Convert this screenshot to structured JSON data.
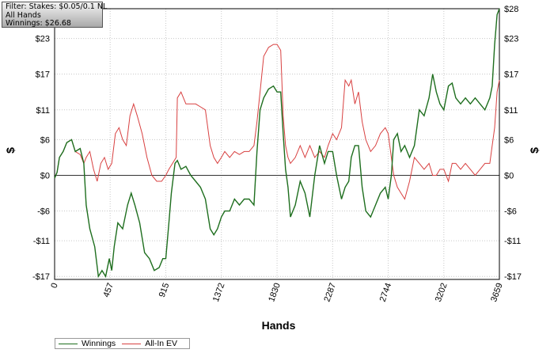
{
  "info": {
    "filter": "Filter: Stakes: $0.05/0.1 NL",
    "hands": "All Hands",
    "winnings": "Winnings: $26.68"
  },
  "chart_data": {
    "type": "line",
    "xlabel": "Hands",
    "ylabel_left": "$",
    "ylabel_right": "$",
    "xlim": [
      0,
      3659
    ],
    "ylim": [
      -17.5,
      28
    ],
    "x_ticks": [
      {
        "value": 0,
        "label": "0"
      },
      {
        "value": 457,
        "label": "457"
      },
      {
        "value": 915,
        "label": "915"
      },
      {
        "value": 1372,
        "label": "1372"
      },
      {
        "value": 1830,
        "label": "1830"
      },
      {
        "value": 2287,
        "label": "2287"
      },
      {
        "value": 2744,
        "label": "2744"
      },
      {
        "value": 3202,
        "label": "3202"
      },
      {
        "value": 3659,
        "label": "3659"
      }
    ],
    "y_ticks": [
      {
        "value": 28,
        "label": "$28"
      },
      {
        "value": 23,
        "label": "$23"
      },
      {
        "value": 17,
        "label": "$17"
      },
      {
        "value": 11,
        "label": "$11"
      },
      {
        "value": 6,
        "label": "$6"
      },
      {
        "value": 0,
        "label": "$0"
      },
      {
        "value": -6,
        "label": "-$6"
      },
      {
        "value": -11,
        "label": "-$11"
      },
      {
        "value": -17,
        "label": "-$17"
      }
    ],
    "grid": true,
    "legend_position": "bottom-left",
    "series": [
      {
        "name": "Winnings",
        "color": "#1e6e1e",
        "points": [
          [
            0,
            -0.5
          ],
          [
            20,
            0.5
          ],
          [
            40,
            3
          ],
          [
            70,
            4
          ],
          [
            100,
            5.5
          ],
          [
            140,
            6
          ],
          [
            170,
            4
          ],
          [
            210,
            4.5
          ],
          [
            240,
            2
          ],
          [
            260,
            -5
          ],
          [
            290,
            -9
          ],
          [
            330,
            -12
          ],
          [
            360,
            -17
          ],
          [
            390,
            -16
          ],
          [
            420,
            -17
          ],
          [
            450,
            -14
          ],
          [
            470,
            -16
          ],
          [
            490,
            -12
          ],
          [
            520,
            -8
          ],
          [
            560,
            -9
          ],
          [
            600,
            -5
          ],
          [
            630,
            -3
          ],
          [
            660,
            -5
          ],
          [
            700,
            -8
          ],
          [
            740,
            -13
          ],
          [
            780,
            -14
          ],
          [
            820,
            -16
          ],
          [
            860,
            -15.5
          ],
          [
            890,
            -14
          ],
          [
            915,
            -14
          ],
          [
            940,
            -8
          ],
          [
            960,
            -3
          ],
          [
            990,
            2
          ],
          [
            1010,
            2.5
          ],
          [
            1040,
            1
          ],
          [
            1080,
            1.5
          ],
          [
            1120,
            0
          ],
          [
            1160,
            -1
          ],
          [
            1200,
            -2
          ],
          [
            1240,
            -4
          ],
          [
            1280,
            -9
          ],
          [
            1310,
            -10
          ],
          [
            1340,
            -9
          ],
          [
            1372,
            -7
          ],
          [
            1400,
            -6
          ],
          [
            1440,
            -6
          ],
          [
            1480,
            -4
          ],
          [
            1520,
            -5
          ],
          [
            1560,
            -4
          ],
          [
            1600,
            -4
          ],
          [
            1640,
            -5
          ],
          [
            1665,
            4
          ],
          [
            1690,
            11
          ],
          [
            1720,
            13
          ],
          [
            1760,
            14.5
          ],
          [
            1800,
            15
          ],
          [
            1830,
            14
          ],
          [
            1860,
            14
          ],
          [
            1880,
            7
          ],
          [
            1900,
            1
          ],
          [
            1920,
            -2
          ],
          [
            1940,
            -7
          ],
          [
            1980,
            -5
          ],
          [
            2020,
            -1
          ],
          [
            2060,
            -3
          ],
          [
            2100,
            -7
          ],
          [
            2140,
            0
          ],
          [
            2180,
            5
          ],
          [
            2220,
            2
          ],
          [
            2250,
            4
          ],
          [
            2287,
            4
          ],
          [
            2320,
            0
          ],
          [
            2360,
            -4
          ],
          [
            2390,
            -2
          ],
          [
            2420,
            -1
          ],
          [
            2440,
            3
          ],
          [
            2470,
            5
          ],
          [
            2500,
            5
          ],
          [
            2530,
            -2
          ],
          [
            2560,
            -6
          ],
          [
            2600,
            -7
          ],
          [
            2640,
            -5
          ],
          [
            2680,
            -3
          ],
          [
            2720,
            -2
          ],
          [
            2744,
            -4
          ],
          [
            2770,
            0
          ],
          [
            2790,
            6
          ],
          [
            2820,
            7
          ],
          [
            2850,
            4
          ],
          [
            2880,
            5
          ],
          [
            2920,
            3
          ],
          [
            2960,
            5
          ],
          [
            3000,
            11
          ],
          [
            3040,
            10
          ],
          [
            3080,
            13
          ],
          [
            3110,
            17
          ],
          [
            3140,
            14
          ],
          [
            3170,
            12
          ],
          [
            3202,
            11
          ],
          [
            3240,
            15
          ],
          [
            3270,
            15.5
          ],
          [
            3300,
            13
          ],
          [
            3340,
            12
          ],
          [
            3380,
            13
          ],
          [
            3420,
            12
          ],
          [
            3460,
            13
          ],
          [
            3500,
            12
          ],
          [
            3540,
            11
          ],
          [
            3580,
            13
          ],
          [
            3600,
            15
          ],
          [
            3620,
            22
          ],
          [
            3640,
            27
          ],
          [
            3659,
            28
          ]
        ]
      },
      {
        "name": "All-In EV",
        "color": "#d84040",
        "points": [
          [
            0,
            -0.5
          ],
          [
            20,
            0.5
          ],
          [
            40,
            3
          ],
          [
            70,
            4
          ],
          [
            100,
            5.5
          ],
          [
            140,
            6
          ],
          [
            170,
            4
          ],
          [
            210,
            3.5
          ],
          [
            240,
            2
          ],
          [
            260,
            3
          ],
          [
            290,
            4
          ],
          [
            320,
            1
          ],
          [
            350,
            -1
          ],
          [
            380,
            2
          ],
          [
            410,
            3
          ],
          [
            440,
            1
          ],
          [
            470,
            2
          ],
          [
            500,
            7
          ],
          [
            530,
            8
          ],
          [
            560,
            6
          ],
          [
            590,
            5
          ],
          [
            620,
            10
          ],
          [
            650,
            12
          ],
          [
            680,
            10
          ],
          [
            720,
            7
          ],
          [
            760,
            3
          ],
          [
            800,
            0
          ],
          [
            840,
            -1
          ],
          [
            880,
            -1
          ],
          [
            915,
            0
          ],
          [
            940,
            1
          ],
          [
            970,
            2
          ],
          [
            1000,
            3
          ],
          [
            1010,
            13
          ],
          [
            1040,
            14
          ],
          [
            1080,
            12
          ],
          [
            1120,
            12
          ],
          [
            1160,
            12
          ],
          [
            1200,
            11.5
          ],
          [
            1240,
            11
          ],
          [
            1280,
            5
          ],
          [
            1310,
            3
          ],
          [
            1340,
            2
          ],
          [
            1372,
            3
          ],
          [
            1400,
            4
          ],
          [
            1440,
            3
          ],
          [
            1480,
            4
          ],
          [
            1520,
            3.5
          ],
          [
            1560,
            4
          ],
          [
            1600,
            4
          ],
          [
            1640,
            5
          ],
          [
            1665,
            9
          ],
          [
            1690,
            14
          ],
          [
            1720,
            20
          ],
          [
            1760,
            21.5
          ],
          [
            1800,
            22
          ],
          [
            1830,
            22
          ],
          [
            1860,
            21
          ],
          [
            1880,
            10
          ],
          [
            1900,
            5
          ],
          [
            1920,
            3
          ],
          [
            1940,
            2
          ],
          [
            1980,
            3
          ],
          [
            2020,
            5
          ],
          [
            2060,
            3
          ],
          [
            2100,
            5
          ],
          [
            2140,
            3
          ],
          [
            2180,
            4
          ],
          [
            2220,
            3
          ],
          [
            2250,
            5
          ],
          [
            2287,
            7
          ],
          [
            2320,
            6
          ],
          [
            2360,
            8
          ],
          [
            2390,
            16
          ],
          [
            2420,
            15
          ],
          [
            2440,
            16
          ],
          [
            2470,
            12
          ],
          [
            2500,
            14
          ],
          [
            2530,
            9
          ],
          [
            2560,
            6
          ],
          [
            2600,
            4
          ],
          [
            2640,
            5
          ],
          [
            2680,
            7
          ],
          [
            2720,
            8
          ],
          [
            2744,
            7
          ],
          [
            2770,
            3
          ],
          [
            2790,
            0
          ],
          [
            2820,
            -2
          ],
          [
            2850,
            -3
          ],
          [
            2880,
            -4
          ],
          [
            2920,
            -1
          ],
          [
            2960,
            3
          ],
          [
            3000,
            2
          ],
          [
            3040,
            1
          ],
          [
            3080,
            2
          ],
          [
            3110,
            0
          ],
          [
            3140,
            0
          ],
          [
            3170,
            1
          ],
          [
            3202,
            1
          ],
          [
            3240,
            -1
          ],
          [
            3270,
            2
          ],
          [
            3300,
            2
          ],
          [
            3340,
            1
          ],
          [
            3380,
            2
          ],
          [
            3420,
            1
          ],
          [
            3460,
            0
          ],
          [
            3500,
            1
          ],
          [
            3540,
            2
          ],
          [
            3580,
            2
          ],
          [
            3600,
            5
          ],
          [
            3620,
            8
          ],
          [
            3640,
            14
          ],
          [
            3659,
            16
          ]
        ]
      }
    ]
  }
}
